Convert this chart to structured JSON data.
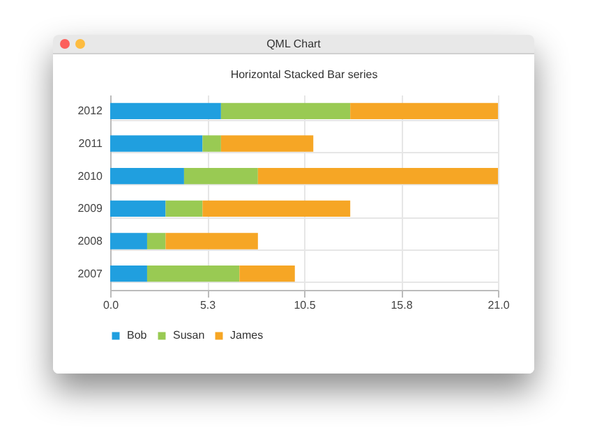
{
  "chart_data": {
    "type": "bar",
    "orientation": "horizontal",
    "stacked": true,
    "title": "Horizontal Stacked Bar series",
    "annotations": [
      "QML Chart"
    ],
    "categories": [
      "2012",
      "2011",
      "2010",
      "2009",
      "2008",
      "2007"
    ],
    "series": [
      {
        "name": "Bob",
        "color": "#209fdf",
        "values": [
          6,
          5,
          4,
          3,
          2,
          2
        ]
      },
      {
        "name": "Susan",
        "color": "#99ca53",
        "values": [
          7,
          1,
          4,
          2,
          1,
          5
        ]
      },
      {
        "name": "James",
        "color": "#f6a625",
        "values": [
          8,
          5,
          13,
          8,
          5,
          3
        ]
      }
    ],
    "xlim": [
      0,
      21
    ],
    "xticks": [
      {
        "value": 0,
        "label": "0.0"
      },
      {
        "value": 5.25,
        "label": "5.3"
      },
      {
        "value": 10.5,
        "label": "10.5"
      },
      {
        "value": 15.75,
        "label": "15.8"
      },
      {
        "value": 21,
        "label": "21.0"
      }
    ],
    "grid": true,
    "legend": "bottom"
  }
}
